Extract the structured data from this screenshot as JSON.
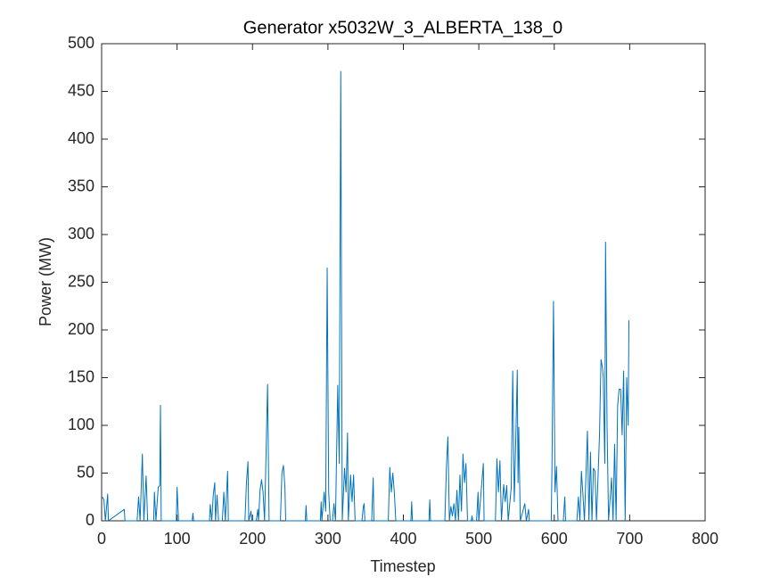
{
  "chart_data": {
    "type": "line",
    "title": "Generator x5032W_3_ALBERTA_138_0",
    "x_label": "Timestep",
    "y_label": "Power (MW)",
    "xlim": [
      0,
      800
    ],
    "xticks": [
      0,
      100,
      200,
      300,
      400,
      500,
      600,
      700,
      800
    ],
    "ylim": [
      0,
      500
    ],
    "yticks": [
      0,
      50,
      100,
      150,
      200,
      250,
      300,
      350,
      400,
      450,
      500
    ],
    "grid": false,
    "series": [
      {
        "color": "#0072bd",
        "x": [
          1,
          3,
          5,
          8,
          9,
          30,
          31,
          47,
          49,
          51,
          54,
          56,
          59,
          61,
          69,
          70,
          72,
          75,
          77,
          78,
          79,
          99,
          100,
          102,
          120,
          121,
          122,
          143,
          144,
          146,
          148,
          150,
          151,
          153,
          155,
          160,
          162,
          164,
          167,
          168,
          190,
          192,
          194,
          195,
          198,
          199,
          205,
          207,
          208,
          210,
          212,
          214,
          216,
          220,
          222,
          237,
          239,
          241,
          243,
          244,
          270,
          271,
          272,
          290,
          291,
          292,
          295,
          297,
          299,
          301,
          303,
          306,
          308,
          310,
          313,
          315,
          317,
          319,
          322,
          324,
          326,
          327,
          330,
          332,
          334,
          336,
          345,
          347,
          348,
          349,
          358,
          360,
          361,
          380,
          382,
          384,
          386,
          388,
          390,
          410,
          411,
          412,
          434,
          435,
          436,
          455,
          457,
          459,
          461,
          463,
          465,
          467,
          469,
          471,
          473,
          475,
          477,
          479,
          481,
          483,
          485,
          490,
          491,
          492,
          497,
          499,
          500,
          506,
          507,
          522,
          524,
          526,
          528,
          530,
          533,
          535,
          537,
          539,
          543,
          545,
          547,
          549,
          551,
          552,
          553,
          555,
          561,
          563,
          566,
          567,
          596,
          597,
          599,
          601,
          603,
          605,
          612,
          614,
          615,
          630,
          632,
          634,
          636,
          638,
          640,
          644,
          646,
          648,
          650,
          652,
          654,
          656,
          660,
          662,
          664,
          665,
          667,
          668,
          670,
          672,
          676,
          678,
          680,
          682,
          684,
          686,
          688,
          690,
          692,
          694,
          696,
          698,
          699
        ],
        "values": [
          25,
          22,
          0,
          28,
          0,
          12,
          0,
          0,
          25,
          0,
          70,
          0,
          47,
          0,
          0,
          30,
          0,
          35,
          37,
          121,
          0,
          0,
          35,
          0,
          0,
          8,
          0,
          0,
          17,
          0,
          27,
          40,
          0,
          27,
          0,
          0,
          30,
          0,
          52,
          0,
          0,
          40,
          62,
          0,
          10,
          0,
          0,
          12,
          0,
          32,
          43,
          30,
          0,
          143,
          0,
          0,
          50,
          58,
          35,
          0,
          0,
          16,
          0,
          0,
          20,
          0,
          30,
          10,
          265,
          30,
          0,
          0,
          18,
          0,
          142,
          60,
          471,
          0,
          55,
          30,
          92,
          0,
          48,
          20,
          48,
          0,
          0,
          15,
          18,
          0,
          0,
          45,
          0,
          0,
          56,
          30,
          50,
          30,
          0,
          0,
          20,
          0,
          0,
          22,
          0,
          0,
          55,
          88,
          0,
          15,
          5,
          18,
          0,
          32,
          0,
          48,
          10,
          70,
          40,
          60,
          0,
          0,
          5,
          0,
          0,
          30,
          0,
          60,
          0,
          0,
          65,
          30,
          63,
          0,
          38,
          20,
          37,
          0,
          35,
          157,
          20,
          85,
          158,
          40,
          98,
          0,
          18,
          0,
          12,
          0,
          0,
          57,
          230,
          30,
          57,
          0,
          0,
          25,
          0,
          0,
          25,
          0,
          52,
          28,
          0,
          94,
          0,
          72,
          0,
          55,
          52,
          0,
          90,
          169,
          160,
          150,
          60,
          292,
          100,
          0,
          45,
          0,
          80,
          0,
          120,
          138,
          138,
          90,
          157,
          0,
          150,
          100,
          210
        ]
      }
    ]
  }
}
